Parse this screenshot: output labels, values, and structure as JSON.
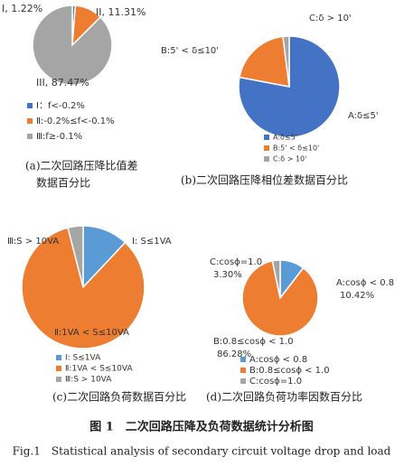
{
  "chart_data": [
    {
      "type": "pie",
      "categories": [
        "Ⅰ：f<-0.2%",
        "Ⅱ:-0.2%≤f<-0.1%",
        "Ⅲ:f≥-0.1%"
      ],
      "values": [
        1.22,
        11.31,
        87.47
      ],
      "value_labels": [
        "I, 1.22%",
        "II, 11.31%",
        "III, 87.47%"
      ],
      "colors": [
        "#4472c4",
        "#ed7d31",
        "#a5a5a5"
      ],
      "caption": [
        "(a)二次回路压降比值差",
        "数据百分比"
      ]
    },
    {
      "type": "pie",
      "categories": [
        "A:δ≤5'",
        "B:5' < δ≤10'",
        "C:δ > 10'"
      ],
      "values": [
        78,
        20,
        2
      ],
      "colors": [
        "#4472c4",
        "#ed7d31",
        "#a5a5a5"
      ],
      "caption": [
        "(b)二次回路压降相位差数据百分比"
      ]
    },
    {
      "type": "pie",
      "categories": [
        "Ⅰ: S≤1VA",
        "Ⅱ:1VA < S≤10VA",
        "Ⅲ:S > 10VA"
      ],
      "values": [
        12,
        84,
        4
      ],
      "colors": [
        "#5b9bd5",
        "#ed7d31",
        "#a5a5a5"
      ],
      "caption": [
        "(c)二次回路负荷数据百分比"
      ]
    },
    {
      "type": "pie",
      "categories": [
        "A:cosϕ < 0.8",
        "B:0.8≤cosϕ < 1.0",
        "C:cosϕ=1.0"
      ],
      "values": [
        10.42,
        86.28,
        3.3
      ],
      "value_labels": [
        "10.42%",
        "86.28%",
        "3.30%"
      ],
      "colors": [
        "#5b9bd5",
        "#ed7d31",
        "#a5a5a5"
      ],
      "caption": [
        "(d)二次回路负荷功率因数百分比"
      ]
    }
  ],
  "figure": {
    "title": "图 1　二次回路压降及负荷数据统计分析图",
    "title_en": "Fig.1　Statistical analysis of secondary circuit voltage drop and load"
  }
}
